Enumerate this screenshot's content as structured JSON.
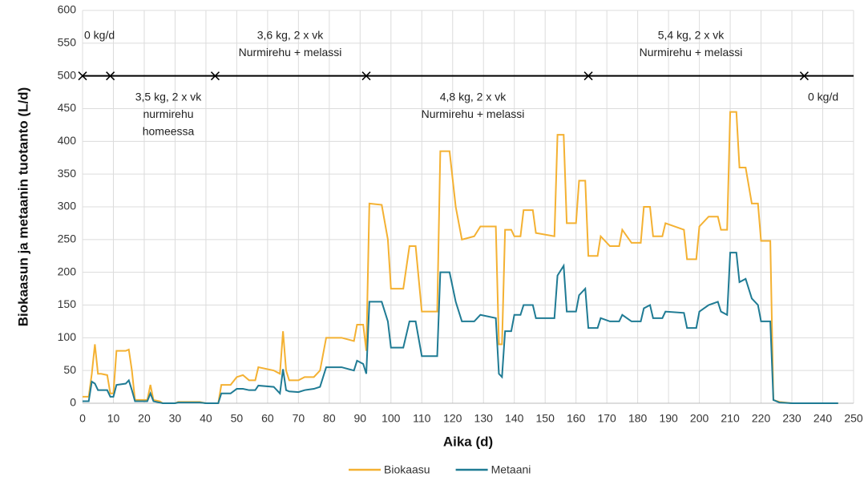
{
  "chart_data": {
    "type": "line",
    "xlabel": "Aika (d)",
    "ylabel": "Biokaasun ja metaanin tuotanto (L/d)",
    "x": [
      0,
      2,
      3,
      4,
      5,
      6,
      8,
      9,
      10,
      11,
      14,
      15,
      16,
      17,
      21,
      22,
      23,
      25,
      26,
      30,
      31,
      38,
      40,
      44,
      45,
      48,
      50,
      52,
      54,
      56,
      57,
      62,
      64,
      65,
      66,
      67,
      70,
      72,
      75,
      77,
      79,
      84,
      88,
      89,
      91,
      92,
      93,
      97,
      99,
      100,
      104,
      106,
      108,
      110,
      115,
      116,
      119,
      121,
      123,
      127,
      129,
      134,
      135,
      136,
      137,
      139,
      140,
      142,
      143,
      146,
      147,
      153,
      154,
      156,
      157,
      160,
      161,
      163,
      164,
      167,
      168,
      171,
      174,
      175,
      178,
      181,
      182,
      184,
      185,
      188,
      189,
      195,
      196,
      199,
      200,
      203,
      206,
      207,
      209,
      210,
      212,
      213,
      215,
      217,
      219,
      220,
      223,
      224,
      226,
      230,
      245
    ],
    "series": [
      {
        "name": "Biokaasu",
        "color": "#f4b132",
        "values": [
          10,
          10,
          45,
          90,
          45,
          45,
          43,
          15,
          15,
          80,
          80,
          82,
          50,
          5,
          5,
          28,
          5,
          3,
          0,
          0,
          2,
          2,
          0,
          0,
          28,
          28,
          40,
          43,
          35,
          35,
          55,
          50,
          45,
          110,
          50,
          35,
          35,
          40,
          40,
          50,
          100,
          100,
          95,
          120,
          120,
          80,
          305,
          303,
          250,
          175,
          175,
          240,
          240,
          140,
          140,
          385,
          385,
          300,
          250,
          255,
          270,
          270,
          90,
          90,
          265,
          265,
          255,
          255,
          295,
          295,
          260,
          255,
          410,
          410,
          275,
          275,
          340,
          340,
          225,
          225,
          255,
          240,
          240,
          265,
          245,
          245,
          300,
          300,
          255,
          255,
          275,
          265,
          220,
          220,
          270,
          285,
          285,
          265,
          265,
          445,
          445,
          360,
          360,
          305,
          305,
          248,
          248,
          5,
          2,
          0,
          0
        ]
      },
      {
        "name": "Metaani",
        "color": "#1f7b94",
        "values": [
          3,
          3,
          33,
          30,
          20,
          20,
          20,
          10,
          10,
          28,
          30,
          35,
          20,
          3,
          3,
          15,
          3,
          1,
          0,
          0,
          1,
          1,
          0,
          0,
          15,
          15,
          22,
          22,
          20,
          20,
          27,
          25,
          15,
          52,
          20,
          18,
          17,
          20,
          22,
          25,
          55,
          55,
          50,
          65,
          60,
          45,
          155,
          155,
          125,
          85,
          85,
          125,
          125,
          72,
          72,
          200,
          200,
          155,
          125,
          125,
          135,
          130,
          45,
          40,
          110,
          110,
          135,
          135,
          150,
          150,
          130,
          130,
          195,
          210,
          140,
          140,
          165,
          175,
          115,
          115,
          130,
          125,
          125,
          135,
          125,
          125,
          145,
          150,
          130,
          130,
          140,
          138,
          115,
          115,
          140,
          150,
          155,
          140,
          135,
          230,
          230,
          185,
          190,
          160,
          150,
          125,
          125,
          5,
          1,
          0,
          0
        ]
      }
    ],
    "xlim": [
      0,
      250
    ],
    "xticks": [
      0,
      10,
      20,
      30,
      40,
      50,
      60,
      70,
      80,
      90,
      100,
      110,
      120,
      130,
      140,
      150,
      160,
      170,
      180,
      190,
      200,
      210,
      220,
      230,
      240,
      250
    ],
    "ylim": [
      0,
      600
    ],
    "yticks": [
      0,
      50,
      100,
      150,
      200,
      250,
      300,
      350,
      400,
      450,
      500,
      550,
      600
    ],
    "grid": true,
    "legend": "bottom",
    "reference_line": {
      "y": 500,
      "markers": [
        0,
        9,
        43,
        92,
        164,
        234
      ]
    },
    "annotations": [
      [
        "0 kg/d"
      ],
      [
        "3,5 kg, 2 x vk",
        "nurmirehu",
        "homeessa"
      ],
      [
        "3,6 kg, 2 x vk",
        "Nurmirehu + melassi"
      ],
      [
        "4,8 kg, 2 x vk",
        "Nurmirehu + melassi"
      ],
      [
        "5,4 kg, 2 x vk",
        "Nurmirehu + melassi"
      ],
      [
        "0 kg/d"
      ]
    ]
  }
}
